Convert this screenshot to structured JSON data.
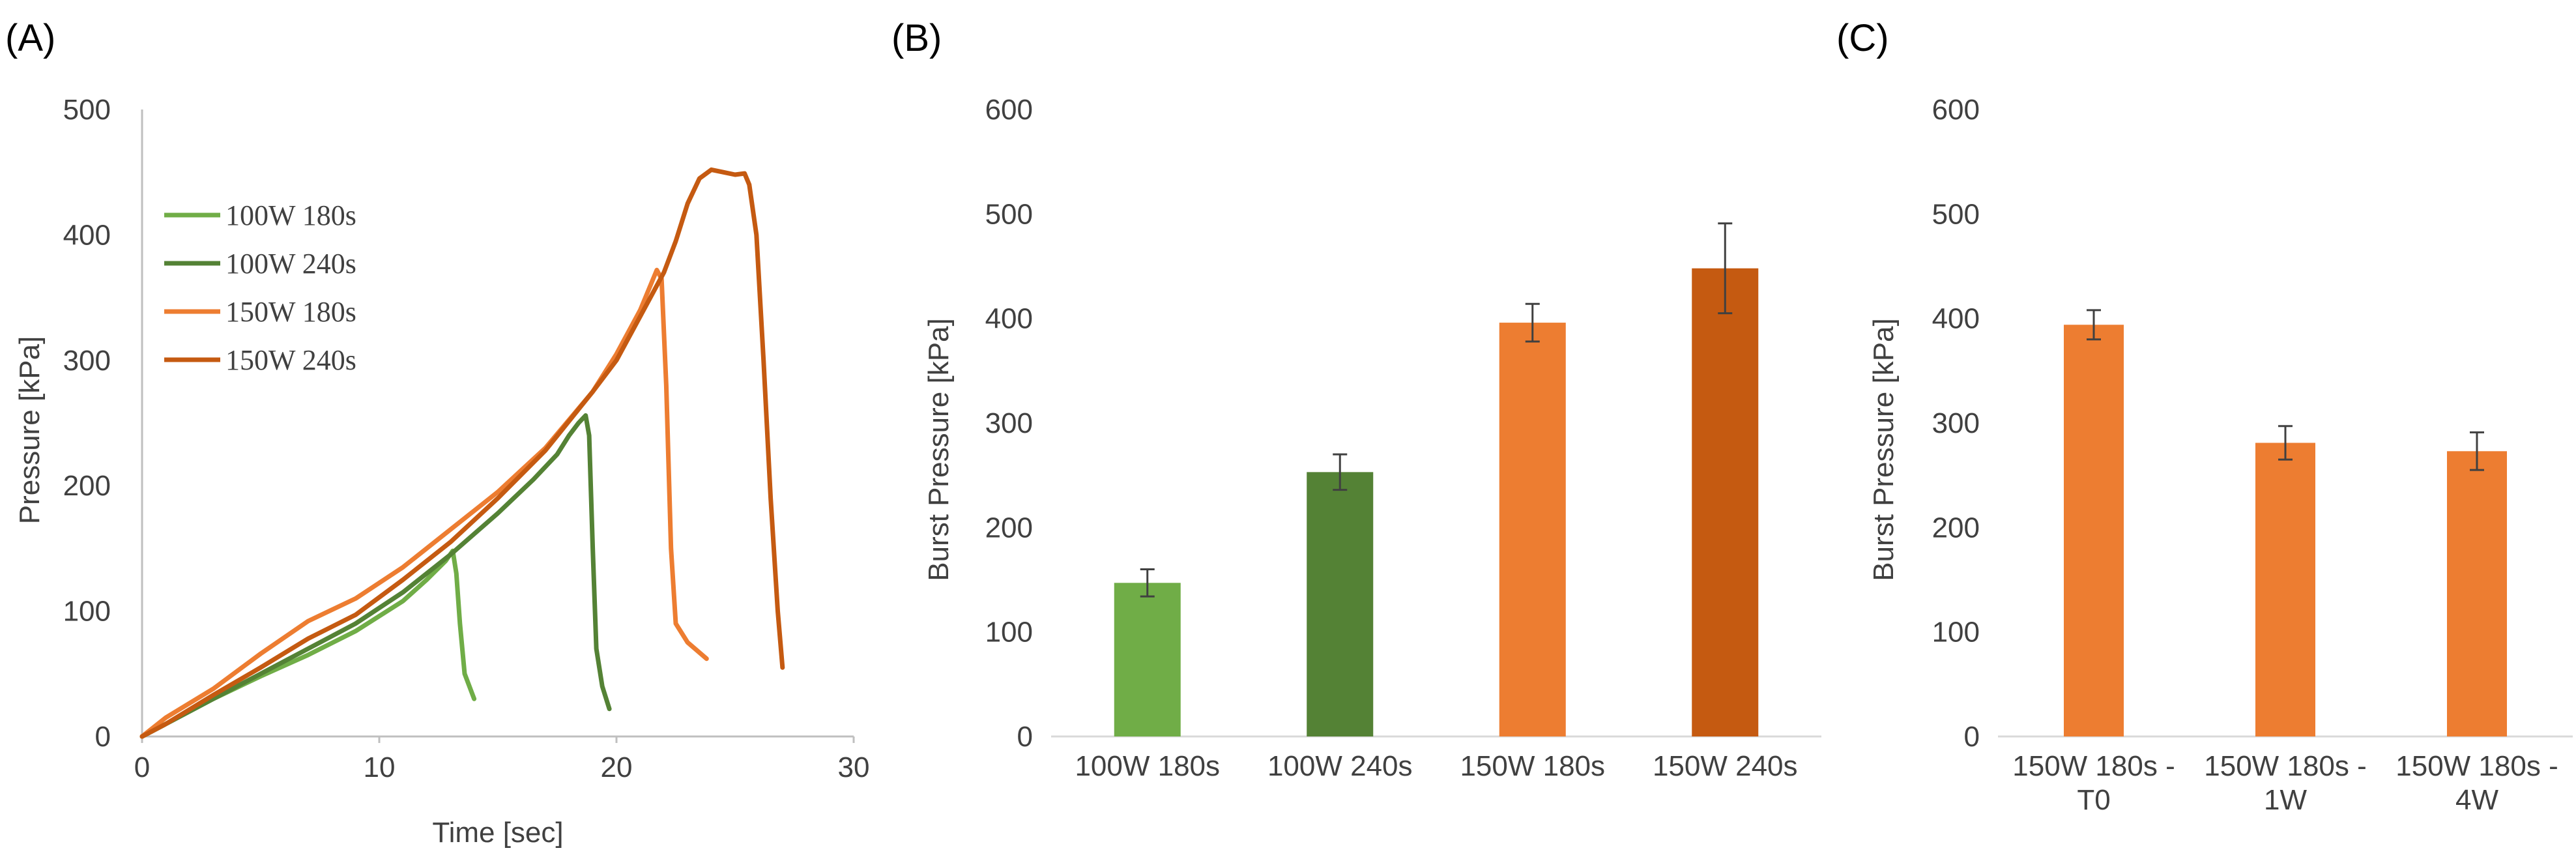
{
  "chart_data": [
    {
      "panel": "(A)",
      "type": "line",
      "title": "",
      "xlabel": "Time [sec]",
      "ylabel": "Pressure [kPa]",
      "xlim": [
        0,
        30
      ],
      "ylim": [
        0,
        500
      ],
      "xticks": [
        0,
        10,
        20,
        30
      ],
      "yticks": [
        0,
        100,
        200,
        300,
        400,
        500
      ],
      "legend_position": "top-left",
      "series": [
        {
          "name": "100W 180s",
          "color": "#70AD47",
          "points": [
            [
              0,
              0
            ],
            [
              1,
              10
            ],
            [
              3,
              30
            ],
            [
              5,
              48
            ],
            [
              7,
              65
            ],
            [
              9,
              84
            ],
            [
              11,
              108
            ],
            [
              12,
              125
            ],
            [
              12.8,
              140
            ],
            [
              13.1,
              148
            ],
            [
              13.25,
              130
            ],
            [
              13.4,
              90
            ],
            [
              13.6,
              50
            ],
            [
              14,
              30
            ]
          ]
        },
        {
          "name": "100W 240s",
          "color": "#548235",
          "points": [
            [
              0,
              0
            ],
            [
              1,
              10
            ],
            [
              3,
              30
            ],
            [
              5,
              50
            ],
            [
              7,
              70
            ],
            [
              9,
              90
            ],
            [
              11,
              115
            ],
            [
              13,
              145
            ],
            [
              15,
              178
            ],
            [
              16.5,
              205
            ],
            [
              17.5,
              225
            ],
            [
              18,
              240
            ],
            [
              18.4,
              250
            ],
            [
              18.7,
              256
            ],
            [
              18.85,
              240
            ],
            [
              19,
              150
            ],
            [
              19.15,
              70
            ],
            [
              19.4,
              40
            ],
            [
              19.7,
              22
            ]
          ]
        },
        {
          "name": "150W 180s",
          "color": "#ED7D31",
          "points": [
            [
              0,
              0
            ],
            [
              1,
              15
            ],
            [
              3,
              38
            ],
            [
              5,
              66
            ],
            [
              7,
              92
            ],
            [
              9,
              110
            ],
            [
              11,
              135
            ],
            [
              13,
              165
            ],
            [
              15,
              195
            ],
            [
              17,
              230
            ],
            [
              19,
              275
            ],
            [
              20,
              305
            ],
            [
              21,
              340
            ],
            [
              21.7,
              372
            ],
            [
              21.9,
              365
            ],
            [
              22.1,
              280
            ],
            [
              22.3,
              150
            ],
            [
              22.5,
              90
            ],
            [
              23,
              75
            ],
            [
              23.8,
              62
            ]
          ]
        },
        {
          "name": "150W 240s",
          "color": "#C55A11",
          "points": [
            [
              0,
              0
            ],
            [
              1,
              10
            ],
            [
              3,
              33
            ],
            [
              5,
              55
            ],
            [
              7,
              78
            ],
            [
              9,
              97
            ],
            [
              11,
              125
            ],
            [
              13,
              155
            ],
            [
              15,
              190
            ],
            [
              17,
              228
            ],
            [
              19,
              275
            ],
            [
              20,
              300
            ],
            [
              21,
              335
            ],
            [
              22,
              370
            ],
            [
              22.5,
              395
            ],
            [
              23,
              425
            ],
            [
              23.5,
              445
            ],
            [
              24,
              452
            ],
            [
              24.5,
              450
            ],
            [
              25,
              448
            ],
            [
              25.4,
              449
            ],
            [
              25.6,
              440
            ],
            [
              25.9,
              400
            ],
            [
              26.2,
              300
            ],
            [
              26.5,
              190
            ],
            [
              26.8,
              100
            ],
            [
              27,
              55
            ]
          ]
        }
      ]
    },
    {
      "panel": "(B)",
      "type": "bar",
      "title": "",
      "xlabel": "",
      "ylabel": "Burst Pressure [kPa]",
      "ylim": [
        0,
        600
      ],
      "yticks": [
        0,
        100,
        200,
        300,
        400,
        500,
        600
      ],
      "categories": [
        "100W 180s",
        "100W 240s",
        "150W 180s",
        "150W 240s"
      ],
      "values": [
        147,
        253,
        396,
        448
      ],
      "errors": [
        13,
        17,
        18,
        43
      ],
      "colors": [
        "#70AD47",
        "#548235",
        "#ED7D31",
        "#C55A11"
      ]
    },
    {
      "panel": "(C)",
      "type": "bar",
      "title": "",
      "xlabel": "",
      "ylabel": "Burst Pressure [kPa]",
      "ylim": [
        0,
        600
      ],
      "yticks": [
        0,
        100,
        200,
        300,
        400,
        500,
        600
      ],
      "categories": [
        [
          "150W 180s -",
          "T0"
        ],
        [
          "150W 180s -",
          "1W"
        ],
        [
          "150W 180s -",
          "4W"
        ]
      ],
      "values": [
        394,
        281,
        273
      ],
      "errors": [
        14,
        16,
        18
      ],
      "colors": [
        "#ED7D31",
        "#ED7D31",
        "#ED7D31"
      ]
    }
  ]
}
